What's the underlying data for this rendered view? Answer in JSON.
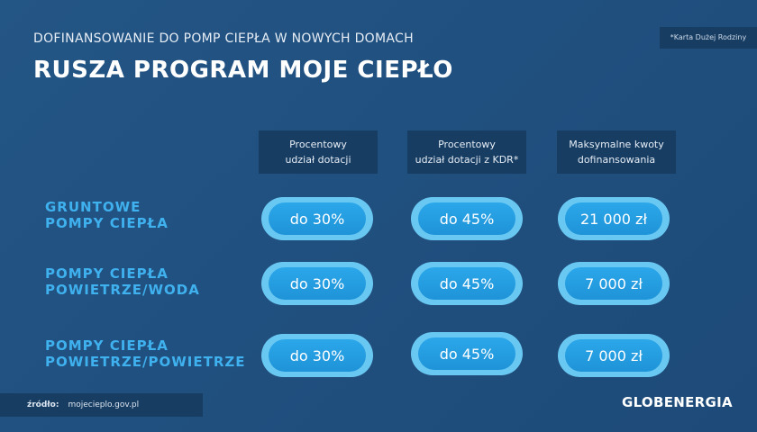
{
  "header": {
    "subtitle": "DOFINANSOWANIE DO POMP CIEPŁA W NOWYCH DOMACH",
    "title": "RUSZA PROGRAM MOJE CIEPŁO",
    "note": "*Karta Dużej Rodziny"
  },
  "table": {
    "columns": [
      [
        "Procentowy",
        "udział dotacji"
      ],
      [
        "Procentowy",
        "udział dotacji z KDR*"
      ],
      [
        "Maksymalne kwoty",
        "dofinansowania"
      ]
    ],
    "rows": [
      {
        "label": [
          "GRUNTOWE",
          "POMPY CIEPŁA"
        ],
        "cells": [
          "do 30%",
          "do 45%",
          "21 000 zł"
        ]
      },
      {
        "label": [
          "POMPY CIEPŁA",
          "POWIETRZE/WODA"
        ],
        "cells": [
          "do 30%",
          "do 45%",
          "7 000 zł"
        ]
      },
      {
        "label": [
          "POMPY CIEPŁA",
          "POWIETRZE/POWIETRZE"
        ],
        "cells": [
          "do 30%",
          "do 45%",
          "7 000 zł"
        ]
      }
    ]
  },
  "footer": {
    "source_label": "źródło:",
    "source": "mojecieplo.gov.pl",
    "logo": "GLOBENERGIA"
  }
}
